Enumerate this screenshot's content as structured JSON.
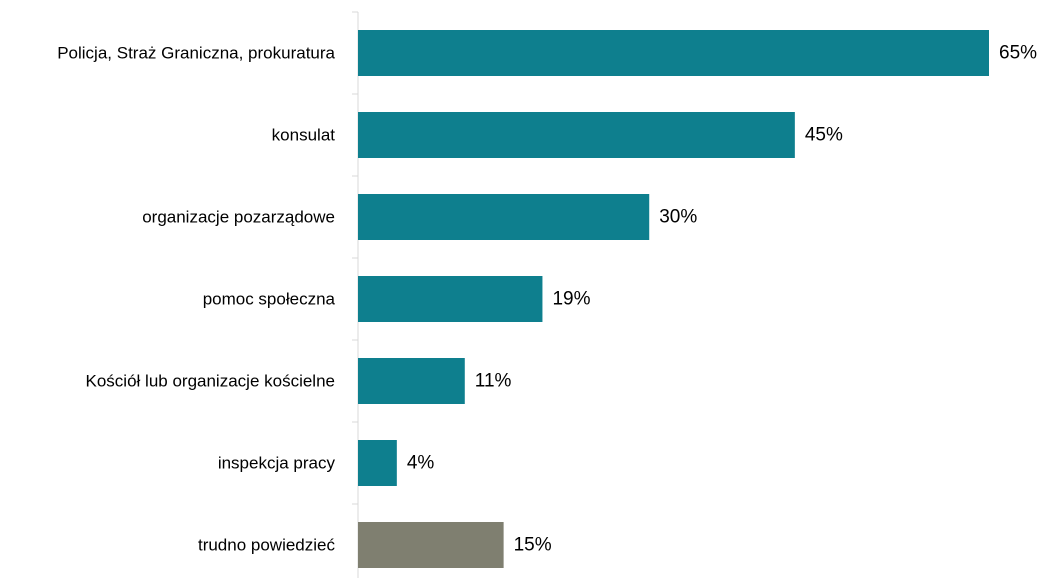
{
  "chart_data": {
    "type": "bar",
    "orientation": "horizontal",
    "title": "",
    "xlabel": "",
    "ylabel": "",
    "xlim": [
      0,
      100
    ],
    "grid": false,
    "legend": "none",
    "categories": [
      "Policja, Straż Graniczna, prokuratura",
      "konsulat",
      "organizacje pozarządowe",
      "pomoc społeczna",
      "Kościół lub organizacje kościelne",
      "inspekcja pracy",
      "trudno powiedzieć"
    ],
    "values": [
      65,
      45,
      30,
      19,
      11,
      4,
      15
    ],
    "value_labels": [
      "65%",
      "45%",
      "30%",
      "19%",
      "11%",
      "4%",
      "15%"
    ],
    "bar_colors": [
      "#0e7f8e",
      "#0e7f8e",
      "#0e7f8e",
      "#0e7f8e",
      "#0e7f8e",
      "#0e7f8e",
      "#7f7f70"
    ],
    "axis_color": "#d9d9d9"
  }
}
